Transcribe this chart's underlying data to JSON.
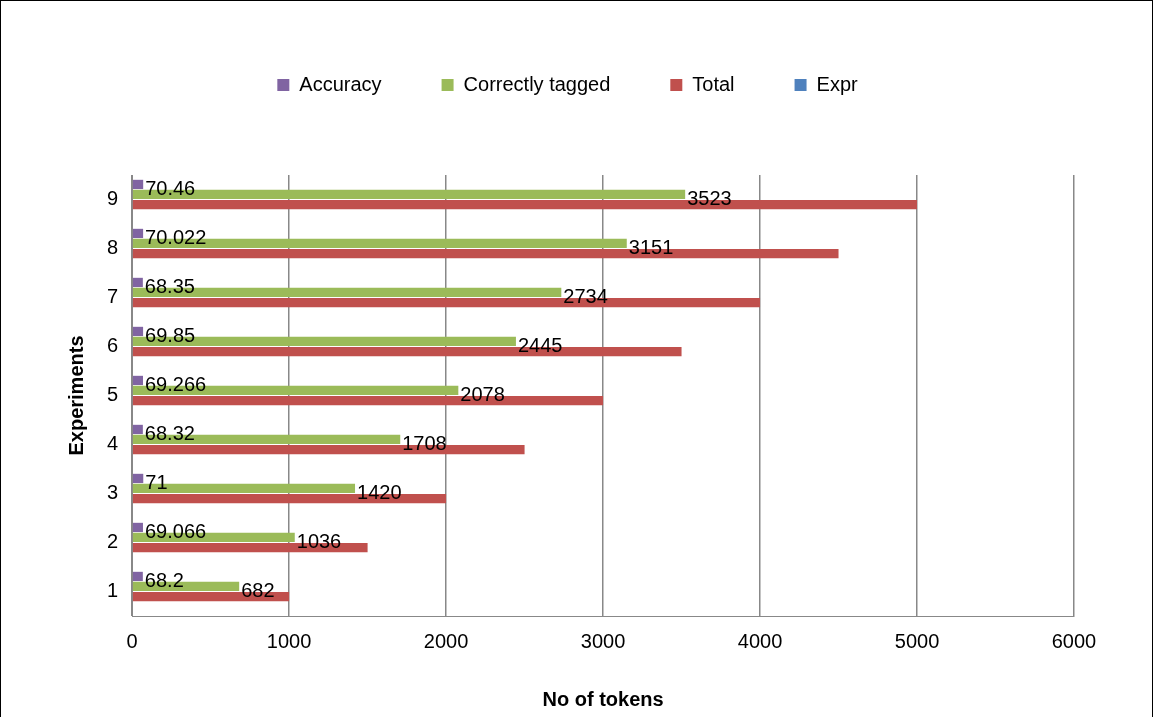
{
  "chart_data": {
    "type": "bar",
    "orientation": "horizontal",
    "xlabel": "No of tokens",
    "ylabel": "Experiments",
    "categories": [
      "9",
      "8",
      "7",
      "6",
      "5",
      "4",
      "3",
      "2",
      "1"
    ],
    "series": [
      {
        "name": "Accuracy",
        "color": "#8064a2",
        "values": [
          70.46,
          70.022,
          68.35,
          69.85,
          69.266,
          68.32,
          71,
          69.066,
          68.2
        ],
        "value_labels": [
          "70.46",
          "70.022",
          "68.35",
          "69.85",
          "69.266",
          "68.32",
          "71",
          "69.066",
          "68.2"
        ]
      },
      {
        "name": "Correctly tagged",
        "color": "#9bbb59",
        "values": [
          3523,
          3151,
          2734,
          2445,
          2078,
          1708,
          1420,
          1036,
          682
        ],
        "value_labels": [
          "3523",
          "3151",
          "2734",
          "2445",
          "2078",
          "1708",
          "1420",
          "1036",
          "682"
        ]
      },
      {
        "name": "Total",
        "color": "#c0504d",
        "values": [
          5000,
          4500,
          4000,
          3500,
          3000,
          2500,
          2000,
          1500,
          1000
        ]
      },
      {
        "name": "Expr",
        "color": "#4f81bd",
        "values": [
          null,
          null,
          null,
          null,
          null,
          null,
          null,
          null,
          null
        ]
      }
    ],
    "xlim": [
      0,
      6000
    ],
    "xticks": [
      0,
      1000,
      2000,
      3000,
      4000,
      5000,
      6000
    ],
    "grid": "x",
    "legend": "top"
  }
}
